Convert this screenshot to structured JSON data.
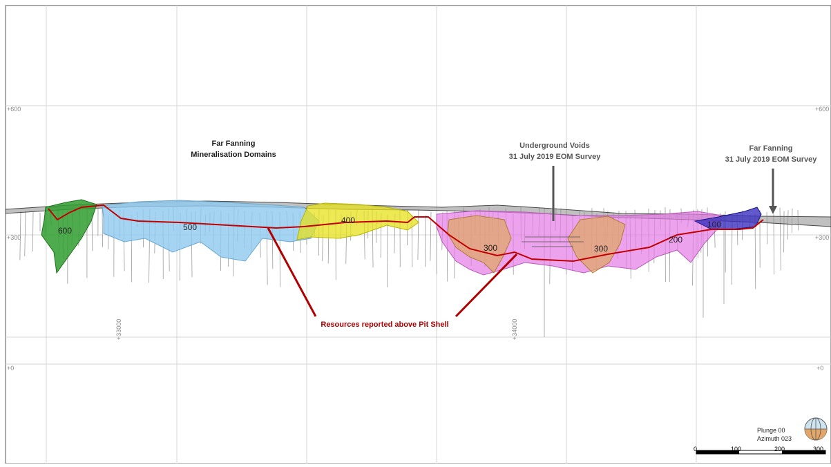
{
  "elevation_labels": {
    "top": "+600",
    "middle": "+300",
    "bottom": "+0"
  },
  "easting_labels": {
    "left": "+33000",
    "right": "+34000"
  },
  "annotations": {
    "domains_line1": "Far Fanning",
    "domains_line2": "Mineralisation Domains",
    "voids_line1": "Underground Voids",
    "voids_line2": "31 July 2019 EOM Survey",
    "survey_line1": "Far Fanning",
    "survey_line2": "31 July 2019 EOM Survey",
    "pit_shell": "Resources reported above Pit Shell"
  },
  "domains": [
    {
      "label": "600",
      "color": "#2f9e2f"
    },
    {
      "label": "500",
      "color": "#8ec9ef"
    },
    {
      "label": "400",
      "color": "#e6e21c"
    },
    {
      "label": "300",
      "color": "#e0a860"
    },
    {
      "label": "300",
      "color": "#e0a860"
    },
    {
      "label": "200",
      "color": "#e67be6"
    },
    {
      "label": "100",
      "color": "#3a2fbf"
    }
  ],
  "orientation": {
    "plunge": "Plunge 00",
    "azimuth": "Azimuth 023"
  },
  "scale_bar": {
    "ticks": [
      "0",
      "100",
      "200",
      "300"
    ]
  },
  "colors": {
    "pit_shell": "#c00000",
    "grid": "#d6d6d6",
    "surface": "#9a9a9a"
  }
}
